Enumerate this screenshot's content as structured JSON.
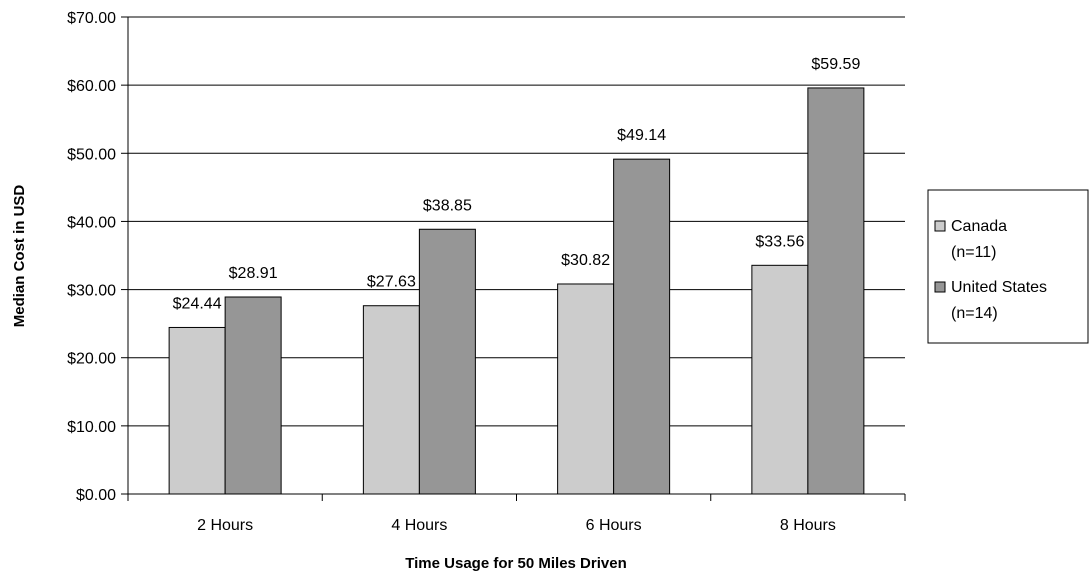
{
  "chart_data": {
    "type": "bar",
    "categories": [
      "2 Hours",
      "4 Hours",
      "6 Hours",
      "8 Hours"
    ],
    "series": [
      {
        "name": "Canada (n=11)",
        "legend_lines": [
          "Canada",
          "(n=11)"
        ],
        "color": "#cccccc",
        "values": [
          24.44,
          27.63,
          30.82,
          33.56
        ],
        "labels": [
          "$24.44",
          "$27.63",
          "$30.82",
          "$33.56"
        ]
      },
      {
        "name": "United States (n=14)",
        "legend_lines": [
          "United States",
          "(n=14)"
        ],
        "color": "#969696",
        "values": [
          28.91,
          38.85,
          49.14,
          59.59
        ],
        "labels": [
          "$28.91",
          "$38.85",
          "$49.14",
          "$59.59"
        ]
      }
    ],
    "xlabel": "Time Usage for 50 Miles Driven",
    "ylabel": "Median Cost in USD",
    "ylim": [
      0,
      70
    ],
    "y_ticks": [
      0,
      10,
      20,
      30,
      40,
      50,
      60,
      70
    ],
    "y_tick_labels": [
      "$0.00",
      "$10.00",
      "$20.00",
      "$30.00",
      "$40.00",
      "$50.00",
      "$60.00",
      "$70.00"
    ],
    "grid": true,
    "legend_position": "right"
  }
}
